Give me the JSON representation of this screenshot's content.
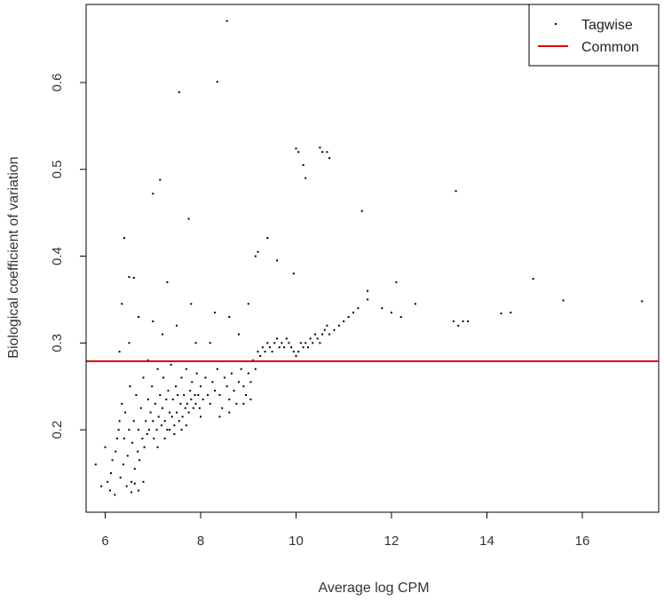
{
  "chart_data": {
    "type": "scatter",
    "xlabel": "Average log CPM",
    "ylabel": "Biological coefficient of variation",
    "xlim": [
      5.6,
      17.6
    ],
    "ylim": [
      0.105,
      0.69
    ],
    "x_ticks": [
      "6",
      "8",
      "10",
      "12",
      "14",
      "16"
    ],
    "y_ticks": [
      "0.2",
      "0.3",
      "0.4",
      "0.5",
      "0.6"
    ],
    "legend": {
      "position": "top-right",
      "entries": [
        {
          "label": "Tagwise",
          "kind": "point",
          "color": "#000000"
        },
        {
          "label": "Common",
          "kind": "line",
          "color": "#e00000"
        }
      ]
    },
    "series": [
      {
        "name": "Common",
        "kind": "hline",
        "y": 0.279,
        "color": "#e00000"
      },
      {
        "name": "Tagwise",
        "kind": "points",
        "color": "#000000",
        "points": [
          [
            5.8,
            0.16
          ],
          [
            5.92,
            0.135
          ],
          [
            6.0,
            0.18
          ],
          [
            6.05,
            0.14
          ],
          [
            6.1,
            0.13
          ],
          [
            6.12,
            0.15
          ],
          [
            6.15,
            0.165
          ],
          [
            6.2,
            0.125
          ],
          [
            6.22,
            0.175
          ],
          [
            6.25,
            0.19
          ],
          [
            6.28,
            0.2
          ],
          [
            6.3,
            0.21
          ],
          [
            6.32,
            0.145
          ],
          [
            6.35,
            0.23
          ],
          [
            6.38,
            0.16
          ],
          [
            6.4,
            0.19
          ],
          [
            6.42,
            0.22
          ],
          [
            6.45,
            0.135
          ],
          [
            6.47,
            0.17
          ],
          [
            6.5,
            0.2
          ],
          [
            6.52,
            0.25
          ],
          [
            6.55,
            0.14
          ],
          [
            6.57,
            0.185
          ],
          [
            6.6,
            0.21
          ],
          [
            6.62,
            0.155
          ],
          [
            6.65,
            0.24
          ],
          [
            6.68,
            0.175
          ],
          [
            6.7,
            0.2
          ],
          [
            6.72,
            0.165
          ],
          [
            6.75,
            0.225
          ],
          [
            6.78,
            0.19
          ],
          [
            6.8,
            0.26
          ],
          [
            6.82,
            0.18
          ],
          [
            6.85,
            0.21
          ],
          [
            6.88,
            0.195
          ],
          [
            6.9,
            0.235
          ],
          [
            6.92,
            0.2
          ],
          [
            6.95,
            0.22
          ],
          [
            6.98,
            0.25
          ],
          [
            7.0,
            0.21
          ],
          [
            7.02,
            0.19
          ],
          [
            7.05,
            0.23
          ],
          [
            7.08,
            0.2
          ],
          [
            7.1,
            0.27
          ],
          [
            7.12,
            0.215
          ],
          [
            7.15,
            0.24
          ],
          [
            7.18,
            0.205
          ],
          [
            7.2,
            0.225
          ],
          [
            7.22,
            0.26
          ],
          [
            7.25,
            0.21
          ],
          [
            7.28,
            0.235
          ],
          [
            7.3,
            0.2
          ],
          [
            7.32,
            0.245
          ],
          [
            7.35,
            0.22
          ],
          [
            7.38,
            0.275
          ],
          [
            7.4,
            0.215
          ],
          [
            7.42,
            0.235
          ],
          [
            7.45,
            0.205
          ],
          [
            7.48,
            0.25
          ],
          [
            7.5,
            0.22
          ],
          [
            7.52,
            0.24
          ],
          [
            7.55,
            0.21
          ],
          [
            7.58,
            0.23
          ],
          [
            7.6,
            0.26
          ],
          [
            7.62,
            0.215
          ],
          [
            7.65,
            0.24
          ],
          [
            7.68,
            0.225
          ],
          [
            7.7,
            0.27
          ],
          [
            7.72,
            0.23
          ],
          [
            7.75,
            0.22
          ],
          [
            7.78,
            0.245
          ],
          [
            7.8,
            0.235
          ],
          [
            7.82,
            0.255
          ],
          [
            7.85,
            0.225
          ],
          [
            7.88,
            0.24
          ],
          [
            7.9,
            0.23
          ],
          [
            7.92,
            0.265
          ],
          [
            7.95,
            0.24
          ],
          [
            7.98,
            0.225
          ],
          [
            8.0,
            0.25
          ],
          [
            8.05,
            0.235
          ],
          [
            8.1,
            0.26
          ],
          [
            8.15,
            0.24
          ],
          [
            8.2,
            0.23
          ],
          [
            8.25,
            0.255
          ],
          [
            8.3,
            0.245
          ],
          [
            8.35,
            0.27
          ],
          [
            8.4,
            0.24
          ],
          [
            8.45,
            0.225
          ],
          [
            8.5,
            0.26
          ],
          [
            8.55,
            0.25
          ],
          [
            8.6,
            0.235
          ],
          [
            8.65,
            0.265
          ],
          [
            8.7,
            0.245
          ],
          [
            8.75,
            0.23
          ],
          [
            8.8,
            0.255
          ],
          [
            8.85,
            0.27
          ],
          [
            8.9,
            0.25
          ],
          [
            8.95,
            0.24
          ],
          [
            9.0,
            0.265
          ],
          [
            9.05,
            0.255
          ],
          [
            9.1,
            0.28
          ],
          [
            9.15,
            0.27
          ],
          [
            9.2,
            0.29
          ],
          [
            9.25,
            0.285
          ],
          [
            9.3,
            0.295
          ],
          [
            9.35,
            0.29
          ],
          [
            9.4,
            0.3
          ],
          [
            9.45,
            0.295
          ],
          [
            9.5,
            0.29
          ],
          [
            9.55,
            0.3
          ],
          [
            9.6,
            0.305
          ],
          [
            9.65,
            0.295
          ],
          [
            9.7,
            0.3
          ],
          [
            9.75,
            0.295
          ],
          [
            9.8,
            0.305
          ],
          [
            9.85,
            0.3
          ],
          [
            9.9,
            0.295
          ],
          [
            9.95,
            0.29
          ],
          [
            10.0,
            0.285
          ],
          [
            10.05,
            0.29
          ],
          [
            10.1,
            0.3
          ],
          [
            10.15,
            0.295
          ],
          [
            10.2,
            0.3
          ],
          [
            10.25,
            0.295
          ],
          [
            10.3,
            0.305
          ],
          [
            10.35,
            0.3
          ],
          [
            10.4,
            0.31
          ],
          [
            10.45,
            0.305
          ],
          [
            10.5,
            0.3
          ],
          [
            10.55,
            0.31
          ],
          [
            10.6,
            0.315
          ],
          [
            10.65,
            0.32
          ],
          [
            10.7,
            0.31
          ],
          [
            10.8,
            0.315
          ],
          [
            10.9,
            0.32
          ],
          [
            11.0,
            0.325
          ],
          [
            11.1,
            0.33
          ],
          [
            11.2,
            0.335
          ],
          [
            11.3,
            0.34
          ],
          [
            11.5,
            0.35
          ],
          [
            11.8,
            0.34
          ],
          [
            12.0,
            0.335
          ],
          [
            12.2,
            0.33
          ],
          [
            12.5,
            0.345
          ],
          [
            13.3,
            0.325
          ],
          [
            13.4,
            0.32
          ],
          [
            13.5,
            0.325
          ],
          [
            13.6,
            0.325
          ],
          [
            14.3,
            0.334
          ],
          [
            14.5,
            0.335
          ],
          [
            14.97,
            0.374
          ],
          [
            15.6,
            0.349
          ],
          [
            17.25,
            0.348
          ],
          [
            6.4,
            0.421
          ],
          [
            6.5,
            0.376
          ],
          [
            6.6,
            0.375
          ],
          [
            7.0,
            0.472
          ],
          [
            7.15,
            0.488
          ],
          [
            7.55,
            0.589
          ],
          [
            7.75,
            0.443
          ],
          [
            8.35,
            0.601
          ],
          [
            8.55,
            0.671
          ],
          [
            8.6,
            0.33
          ],
          [
            9.15,
            0.4
          ],
          [
            9.2,
            0.405
          ],
          [
            9.4,
            0.421
          ],
          [
            9.6,
            0.395
          ],
          [
            9.95,
            0.38
          ],
          [
            10.0,
            0.524
          ],
          [
            10.05,
            0.52
          ],
          [
            10.15,
            0.505
          ],
          [
            10.2,
            0.49
          ],
          [
            10.5,
            0.525
          ],
          [
            10.55,
            0.52
          ],
          [
            10.65,
            0.52
          ],
          [
            10.7,
            0.513
          ],
          [
            11.38,
            0.452
          ],
          [
            13.35,
            0.475
          ],
          [
            12.1,
            0.37
          ],
          [
            11.5,
            0.36
          ],
          [
            6.35,
            0.345
          ],
          [
            6.7,
            0.33
          ],
          [
            7.0,
            0.325
          ],
          [
            7.3,
            0.37
          ],
          [
            7.8,
            0.345
          ],
          [
            8.3,
            0.335
          ],
          [
            9.0,
            0.345
          ],
          [
            6.3,
            0.29
          ],
          [
            6.5,
            0.3
          ],
          [
            6.9,
            0.28
          ],
          [
            7.2,
            0.31
          ],
          [
            7.5,
            0.32
          ],
          [
            7.9,
            0.3
          ],
          [
            8.2,
            0.3
          ],
          [
            8.8,
            0.31
          ],
          [
            6.7,
            0.13
          ],
          [
            6.8,
            0.14
          ],
          [
            6.55,
            0.128
          ],
          [
            6.62,
            0.138
          ],
          [
            7.1,
            0.18
          ],
          [
            7.25,
            0.19
          ],
          [
            7.35,
            0.2
          ],
          [
            7.45,
            0.195
          ],
          [
            7.6,
            0.2
          ],
          [
            7.7,
            0.205
          ],
          [
            8.0,
            0.215
          ],
          [
            8.4,
            0.215
          ],
          [
            8.6,
            0.22
          ],
          [
            8.9,
            0.23
          ],
          [
            9.05,
            0.235
          ]
        ]
      }
    ]
  }
}
